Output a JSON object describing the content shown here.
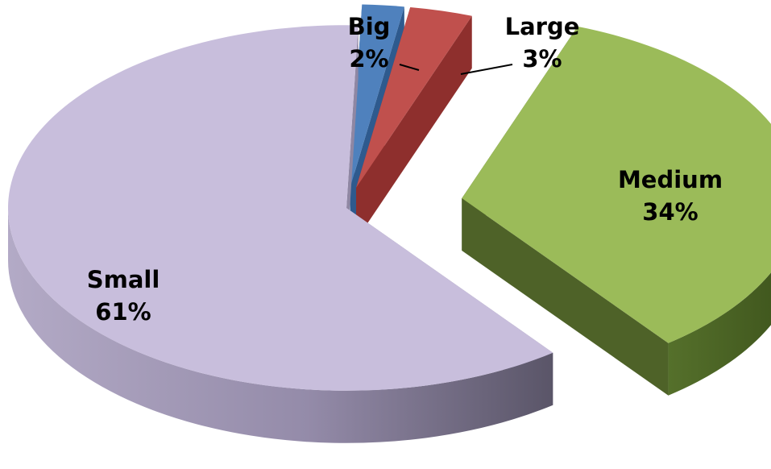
{
  "chart_data": {
    "type": "pie",
    "title": "",
    "style": "3d-exploded",
    "slices": [
      {
        "name": "Big",
        "value": 2,
        "percent_label": "2%",
        "color": "#4F81BD",
        "side_color": "#2E5A8E"
      },
      {
        "name": "Large",
        "value": 3,
        "percent_label": "3%",
        "color": "#C0504D",
        "side_color": "#8E2F2D"
      },
      {
        "name": "Medium",
        "value": 34,
        "percent_label": "34%",
        "color": "#9BBB59",
        "side_color": "#4E6228"
      },
      {
        "name": "Small",
        "value": 61,
        "percent_label": "61%",
        "color": "#C8BEDC",
        "side_color": "#8F87A3"
      }
    ]
  }
}
